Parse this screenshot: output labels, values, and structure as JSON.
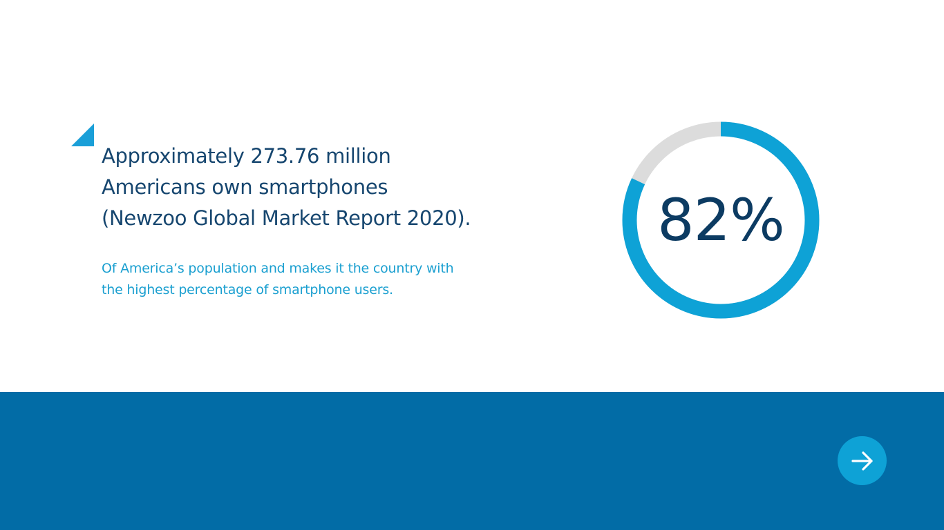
{
  "slide": {
    "headline": "Approximately 273.76 million\nAmericans own smartphones\n(Newzoo Global Market Report 2020).",
    "subtext": "Of America’s population and makes it the country with\nthe highest percentage of smartphone users.",
    "stat_label": "82%",
    "stat_value": 82
  },
  "icons": {
    "corner": "corner-triangle-icon",
    "next": "arrow-right-icon"
  },
  "colors": {
    "headline": "#16466f",
    "subtext": "#1a9fd0",
    "ring_fill": "#0ea2d6",
    "ring_track": "#dcdcdc",
    "stat_text": "#0c3b62",
    "band": "#026ca6",
    "button": "#0ea2d6",
    "corner": "#1a9fd8"
  }
}
